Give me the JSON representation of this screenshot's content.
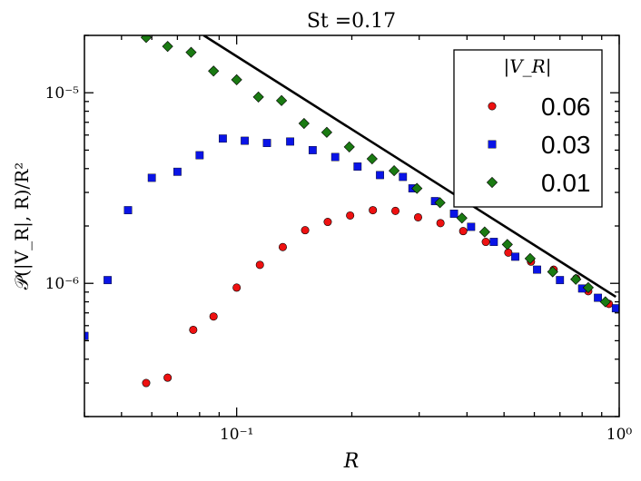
{
  "chart_data": {
    "type": "scatter",
    "title": "St =0.17",
    "xlabel": "R",
    "ylabel": "𝒫(|V_R|, R)/R²",
    "xscale": "log",
    "yscale": "log",
    "xlim": [
      0.04,
      1.0
    ],
    "ylim": [
      2e-07,
      2e-05
    ],
    "x_major_ticks": [
      {
        "value": 0.1,
        "label": "10⁻¹"
      },
      {
        "value": 1.0,
        "label": "10⁰"
      }
    ],
    "y_major_ticks": [
      {
        "value": 1e-06,
        "label": "10⁻⁶"
      },
      {
        "value": 1e-05,
        "label": "10⁻⁵"
      }
    ],
    "legend": {
      "title": "|V_R|",
      "position": "top-right"
    },
    "series": [
      {
        "name": "0.06",
        "marker": "circle",
        "color": "#ee1111",
        "points": [
          [
            0.058,
            3e-07
          ],
          [
            0.066,
            3.2e-07
          ],
          [
            0.077,
            5.7e-07
          ],
          [
            0.087,
            6.7e-07
          ],
          [
            0.1,
            9.5e-07
          ],
          [
            0.115,
            1.25e-06
          ],
          [
            0.132,
            1.55e-06
          ],
          [
            0.151,
            1.9e-06
          ],
          [
            0.173,
            2.1e-06
          ],
          [
            0.198,
            2.27e-06
          ],
          [
            0.227,
            2.42e-06
          ],
          [
            0.26,
            2.4e-06
          ],
          [
            0.298,
            2.22e-06
          ],
          [
            0.341,
            2.07e-06
          ],
          [
            0.391,
            1.88e-06
          ],
          [
            0.448,
            1.65e-06
          ],
          [
            0.513,
            1.45e-06
          ],
          [
            0.588,
            1.3e-06
          ],
          [
            0.674,
            1.18e-06
          ],
          [
            0.772,
            1.06e-06
          ],
          [
            0.83,
            9.1e-07
          ],
          [
            0.94,
            7.8e-07
          ]
        ]
      },
      {
        "name": "0.03",
        "marker": "square",
        "color": "#0a14e6",
        "points": [
          [
            0.04,
            5.3e-07
          ],
          [
            0.046,
            1.04e-06
          ],
          [
            0.052,
            2.42e-06
          ],
          [
            0.06,
            3.58e-06
          ],
          [
            0.07,
            3.85e-06
          ],
          [
            0.08,
            4.7e-06
          ],
          [
            0.092,
            5.75e-06
          ],
          [
            0.105,
            5.6e-06
          ],
          [
            0.12,
            5.45e-06
          ],
          [
            0.138,
            5.55e-06
          ],
          [
            0.158,
            5e-06
          ],
          [
            0.181,
            4.6e-06
          ],
          [
            0.207,
            4.1e-06
          ],
          [
            0.237,
            3.7e-06
          ],
          [
            0.272,
            3.62e-06
          ],
          [
            0.288,
            3.15e-06
          ],
          [
            0.33,
            2.7e-06
          ],
          [
            0.37,
            2.32e-06
          ],
          [
            0.41,
            1.98e-06
          ],
          [
            0.47,
            1.65e-06
          ],
          [
            0.535,
            1.38e-06
          ],
          [
            0.61,
            1.18e-06
          ],
          [
            0.7,
            1.04e-06
          ],
          [
            0.8,
            9.4e-07
          ],
          [
            0.88,
            8.4e-07
          ],
          [
            0.98,
            7.4e-07
          ]
        ]
      },
      {
        "name": "0.01",
        "marker": "diamond",
        "color": "#1a7a12",
        "points": [
          [
            0.058,
            1.95e-05
          ],
          [
            0.066,
            1.75e-05
          ],
          [
            0.076,
            1.63e-05
          ],
          [
            0.087,
            1.3e-05
          ],
          [
            0.1,
            1.17e-05
          ],
          [
            0.114,
            9.5e-06
          ],
          [
            0.131,
            9.1e-06
          ],
          [
            0.15,
            6.9e-06
          ],
          [
            0.172,
            6.2e-06
          ],
          [
            0.197,
            5.2e-06
          ],
          [
            0.226,
            4.5e-06
          ],
          [
            0.258,
            3.9e-06
          ],
          [
            0.296,
            3.15e-06
          ],
          [
            0.34,
            2.65e-06
          ],
          [
            0.388,
            2.2e-06
          ],
          [
            0.445,
            1.86e-06
          ],
          [
            0.51,
            1.6e-06
          ],
          [
            0.585,
            1.35e-06
          ],
          [
            0.67,
            1.15e-06
          ],
          [
            0.77,
            1.05e-06
          ],
          [
            0.83,
            9.5e-07
          ],
          [
            0.92,
            8e-07
          ]
        ]
      }
    ],
    "reference_line": {
      "description": "power-law slope line",
      "color": "#000000",
      "points": [
        [
          0.082,
          2e-05
        ],
        [
          0.98,
          8.5e-07
        ]
      ]
    }
  }
}
